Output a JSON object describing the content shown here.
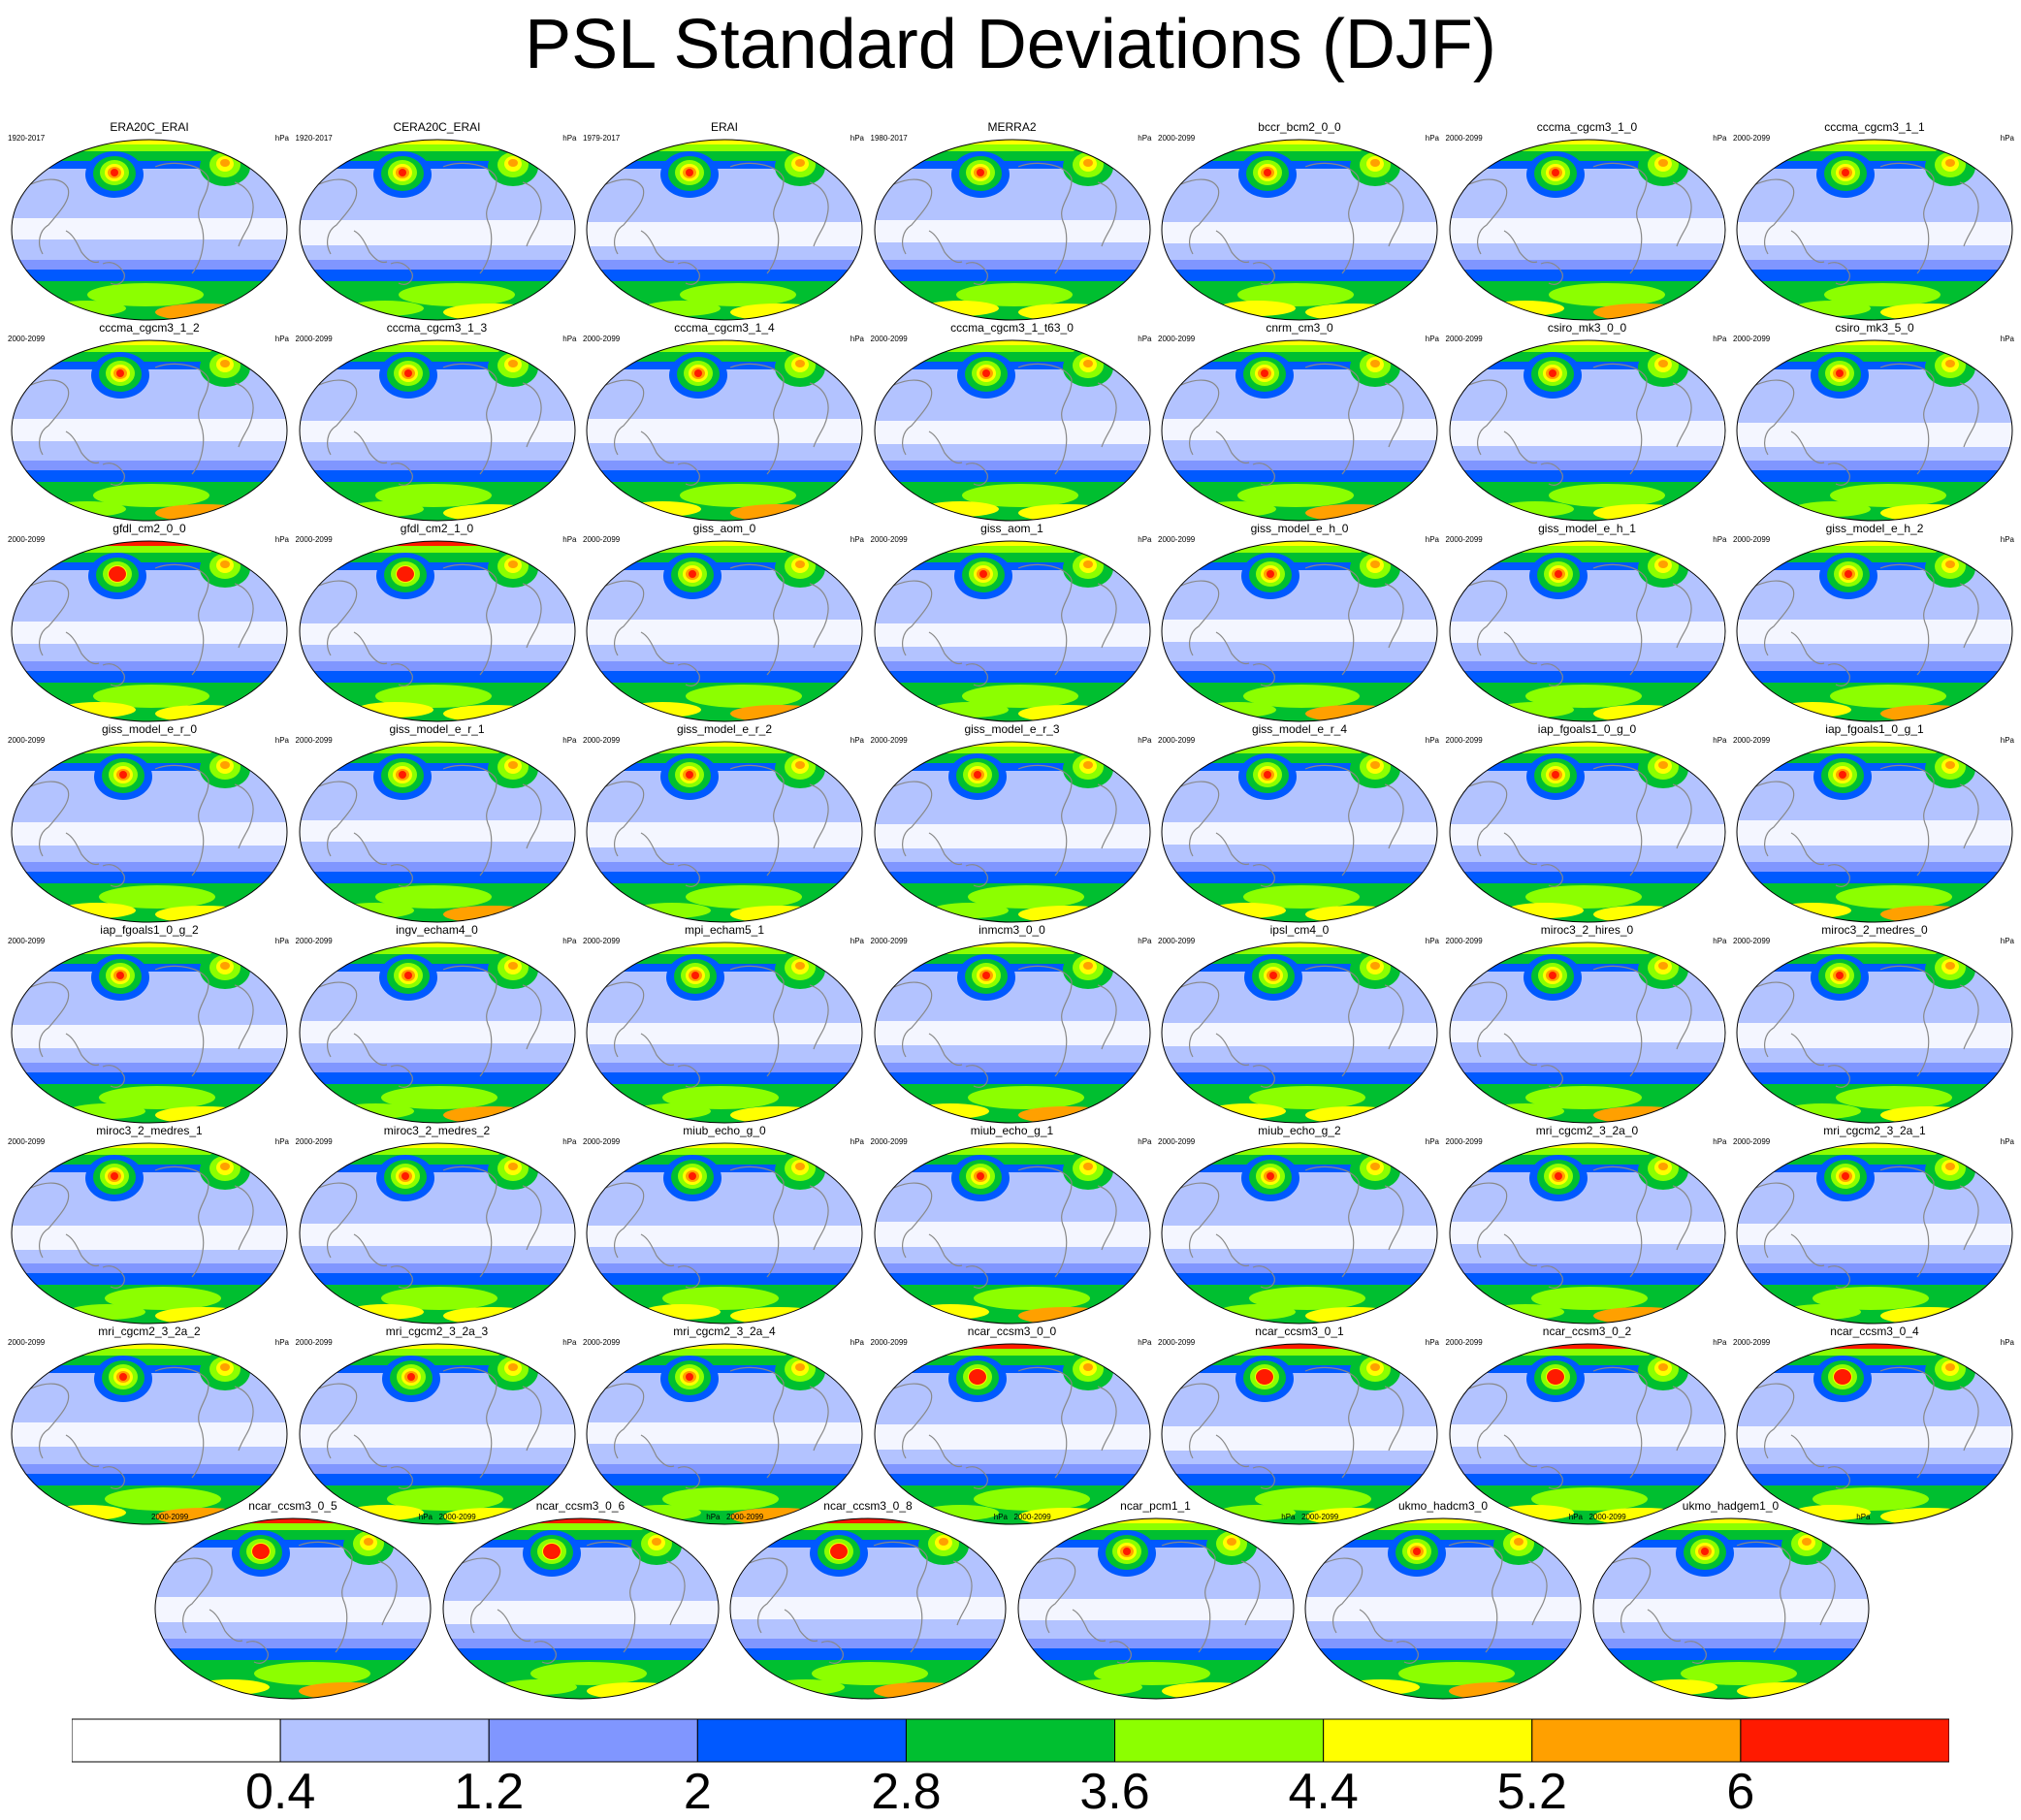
{
  "title": "PSL Standard Deviations (DJF)",
  "unit": "hPa",
  "panels": [
    {
      "name": "ERA20C_ERAI",
      "period": "1920-2017"
    },
    {
      "name": "CERA20C_ERAI",
      "period": "1920-2017"
    },
    {
      "name": "ERAI",
      "period": "1979-2017"
    },
    {
      "name": "MERRA2",
      "period": "1980-2017"
    },
    {
      "name": "bccr_bcm2_0_0",
      "period": "2000-2099"
    },
    {
      "name": "cccma_cgcm3_1_0",
      "period": "2000-2099"
    },
    {
      "name": "cccma_cgcm3_1_1",
      "period": "2000-2099"
    },
    {
      "name": "cccma_cgcm3_1_2",
      "period": "2000-2099"
    },
    {
      "name": "cccma_cgcm3_1_3",
      "period": "2000-2099"
    },
    {
      "name": "cccma_cgcm3_1_4",
      "period": "2000-2099"
    },
    {
      "name": "cccma_cgcm3_1_t63_0",
      "period": "2000-2099"
    },
    {
      "name": "cnrm_cm3_0",
      "period": "2000-2099"
    },
    {
      "name": "csiro_mk3_0_0",
      "period": "2000-2099"
    },
    {
      "name": "csiro_mk3_5_0",
      "period": "2000-2099"
    },
    {
      "name": "gfdl_cm2_0_0",
      "period": "2000-2099"
    },
    {
      "name": "gfdl_cm2_1_0",
      "period": "2000-2099"
    },
    {
      "name": "giss_aom_0",
      "period": "2000-2099"
    },
    {
      "name": "giss_aom_1",
      "period": "2000-2099"
    },
    {
      "name": "giss_model_e_h_0",
      "period": "2000-2099"
    },
    {
      "name": "giss_model_e_h_1",
      "period": "2000-2099"
    },
    {
      "name": "giss_model_e_h_2",
      "period": "2000-2099"
    },
    {
      "name": "giss_model_e_r_0",
      "period": "2000-2099"
    },
    {
      "name": "giss_model_e_r_1",
      "period": "2000-2099"
    },
    {
      "name": "giss_model_e_r_2",
      "period": "2000-2099"
    },
    {
      "name": "giss_model_e_r_3",
      "period": "2000-2099"
    },
    {
      "name": "giss_model_e_r_4",
      "period": "2000-2099"
    },
    {
      "name": "iap_fgoals1_0_g_0",
      "period": "2000-2099"
    },
    {
      "name": "iap_fgoals1_0_g_1",
      "period": "2000-2099"
    },
    {
      "name": "iap_fgoals1_0_g_2",
      "period": "2000-2099"
    },
    {
      "name": "ingv_echam4_0",
      "period": "2000-2099"
    },
    {
      "name": "mpi_echam5_1",
      "period": "2000-2099"
    },
    {
      "name": "inmcm3_0_0",
      "period": "2000-2099"
    },
    {
      "name": "ipsl_cm4_0",
      "period": "2000-2099"
    },
    {
      "name": "miroc3_2_hires_0",
      "period": "2000-2099"
    },
    {
      "name": "miroc3_2_medres_0",
      "period": "2000-2099"
    },
    {
      "name": "miroc3_2_medres_1",
      "period": "2000-2099"
    },
    {
      "name": "miroc3_2_medres_2",
      "period": "2000-2099"
    },
    {
      "name": "miub_echo_g_0",
      "period": "2000-2099"
    },
    {
      "name": "miub_echo_g_1",
      "period": "2000-2099"
    },
    {
      "name": "miub_echo_g_2",
      "period": "2000-2099"
    },
    {
      "name": "mri_cgcm2_3_2a_0",
      "period": "2000-2099"
    },
    {
      "name": "mri_cgcm2_3_2a_1",
      "period": "2000-2099"
    },
    {
      "name": "mri_cgcm2_3_2a_2",
      "period": "2000-2099"
    },
    {
      "name": "mri_cgcm2_3_2a_3",
      "period": "2000-2099"
    },
    {
      "name": "mri_cgcm2_3_2a_4",
      "period": "2000-2099"
    },
    {
      "name": "ncar_ccsm3_0_0",
      "period": "2000-2099"
    },
    {
      "name": "ncar_ccsm3_0_1",
      "period": "2000-2099"
    },
    {
      "name": "ncar_ccsm3_0_2",
      "period": "2000-2099"
    },
    {
      "name": "ncar_ccsm3_0_4",
      "period": "2000-2099"
    },
    {
      "name": "ncar_ccsm3_0_5",
      "period": "2000-2099"
    },
    {
      "name": "ncar_ccsm3_0_6",
      "period": "2000-2099"
    },
    {
      "name": "ncar_ccsm3_0_8",
      "period": "2000-2099"
    },
    {
      "name": "ncar_pcm1_1",
      "period": "2000-2099"
    },
    {
      "name": "ukmo_hadcm3_0",
      "period": "2000-2099"
    },
    {
      "name": "ukmo_hadgem1_0",
      "period": "2000-2099"
    }
  ],
  "colorbar": {
    "colors": [
      "#ffffff",
      "#b3c3ff",
      "#8096ff",
      "#0059ff",
      "#00bf30",
      "#8cff00",
      "#ffff00",
      "#ffa000",
      "#ff1a00"
    ],
    "labels": [
      "0.4",
      "1.2",
      "2",
      "2.8",
      "3.6",
      "4.4",
      "5.2",
      "6"
    ]
  },
  "map_colors": {
    "ocean_base": "#b3c3ff",
    "tropics": "#ffffff",
    "coast": "#888888"
  }
}
